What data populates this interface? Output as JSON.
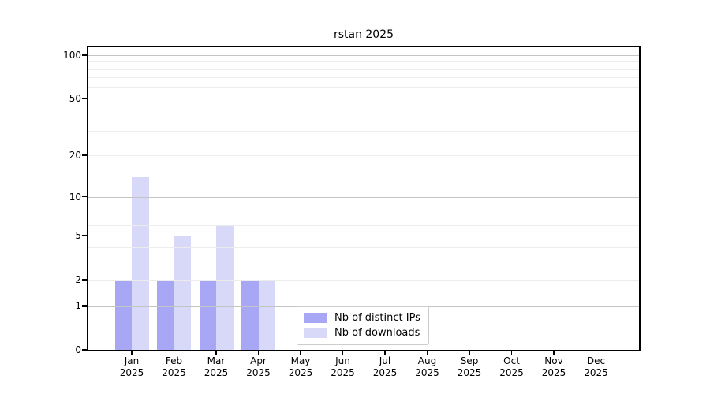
{
  "chart_data": {
    "type": "bar",
    "title": "rstan 2025",
    "categories": [
      "Jan",
      "Feb",
      "Mar",
      "Apr",
      "May",
      "Jun",
      "Jul",
      "Aug",
      "Sep",
      "Oct",
      "Nov",
      "Dec"
    ],
    "category_year": "2025",
    "series": [
      {
        "name": "Nb of distinct IPs",
        "color": "#a7a7f6",
        "values": [
          2,
          2,
          2,
          2,
          0,
          0,
          0,
          0,
          0,
          0,
          0,
          0
        ]
      },
      {
        "name": "Nb of downloads",
        "color": "#d8d8f8",
        "values": [
          14,
          5,
          6,
          2,
          0,
          0,
          0,
          0,
          0,
          0,
          0,
          0
        ]
      }
    ],
    "xlabel": "",
    "ylabel": "",
    "yscale": "log1p",
    "ylim": [
      0,
      113
    ],
    "yticks": [
      0,
      1,
      2,
      5,
      10,
      20,
      50,
      100
    ],
    "grid": {
      "on": true,
      "major_values": [
        1,
        10,
        100
      ],
      "minor_values": [
        2,
        3,
        4,
        5,
        6,
        7,
        8,
        9,
        20,
        30,
        40,
        50,
        60,
        70,
        80,
        90
      ],
      "major_color": "#c4c4c4",
      "minor_color": "#ececec"
    },
    "legend": {
      "position": "inside-bottom-center",
      "entries": [
        "Nb of distinct IPs",
        "Nb of downloads"
      ]
    },
    "axis_color": "#000000",
    "background_color": "#ffffff"
  }
}
